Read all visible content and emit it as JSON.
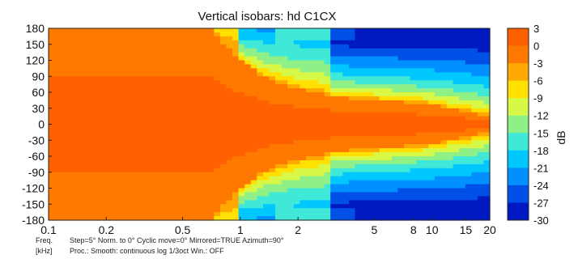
{
  "chart_data": {
    "type": "heatmap",
    "title": "Vertical isobars: hd C1CX",
    "x_scale": "log",
    "xlim": [
      0.1,
      20
    ],
    "ylim": [
      -180,
      180
    ],
    "x_tick_labels": [
      "0.1",
      "0.2",
      "0.5",
      "1",
      "2",
      "5",
      "8",
      "10",
      "15",
      "20"
    ],
    "x_tick_values": [
      0.1,
      0.2,
      0.5,
      1,
      2,
      5,
      8,
      10,
      15,
      20
    ],
    "y_tick_values": [
      180,
      150,
      120,
      90,
      60,
      30,
      0,
      -30,
      -60,
      -90,
      -120,
      -150,
      -180
    ],
    "y_tick_labels": [
      "180",
      "150",
      "120",
      "90",
      "60",
      "30",
      "0",
      "-30",
      "-60",
      "-90",
      "-120",
      "-150",
      "-180"
    ],
    "colorbar_label": "dB",
    "colorbar_ticks": [
      "3",
      "0",
      "-3",
      "-6",
      "-9",
      "-12",
      "-15",
      "-18",
      "-21",
      "-24",
      "-27",
      "-30"
    ],
    "colorbar_levels": [
      {
        "from": 0,
        "to": 3,
        "color": "#ff6000"
      },
      {
        "from": -3,
        "to": 0,
        "color": "#ff7800"
      },
      {
        "from": -6,
        "to": -3,
        "color": "#ffa800"
      },
      {
        "from": -9,
        "to": -6,
        "color": "#ffe000"
      },
      {
        "from": -12,
        "to": -9,
        "color": "#d8f848"
      },
      {
        "from": -15,
        "to": -12,
        "color": "#90f088"
      },
      {
        "from": -18,
        "to": -15,
        "color": "#40e8d8"
      },
      {
        "from": -21,
        "to": -18,
        "color": "#00c8ff"
      },
      {
        "from": -24,
        "to": -21,
        "color": "#0090ff"
      },
      {
        "from": -27,
        "to": -24,
        "color": "#0050e8"
      },
      {
        "from": -30,
        "to": -27,
        "color": "#0018c0"
      }
    ],
    "beamwidth_profile": {
      "freq_khz": [
        0.1,
        0.7,
        0.8,
        1.0,
        1.3,
        1.7,
        2.2,
        3.0,
        4.0,
        5.0,
        6.5,
        8.0,
        10.0,
        12.0,
        15.0,
        20.0
      ],
      "half_angle_deg": [
        180,
        180,
        150,
        118,
        90,
        72,
        62,
        52,
        47,
        45,
        43,
        38,
        36,
        30,
        22,
        15
      ]
    },
    "y_axis_label": "",
    "x_axis_label": "Freq.\n[kHz]"
  },
  "footer": {
    "freq_label": "Freq.",
    "unit_label": "[kHz]",
    "line1": "Step=5°   Norm. to 0°   Cyclic move=0°   Mirrored=TRUE   Azimuth=90°",
    "line2": "Proc.: Smooth: continuous log 1/3oct    Win.: OFF"
  }
}
